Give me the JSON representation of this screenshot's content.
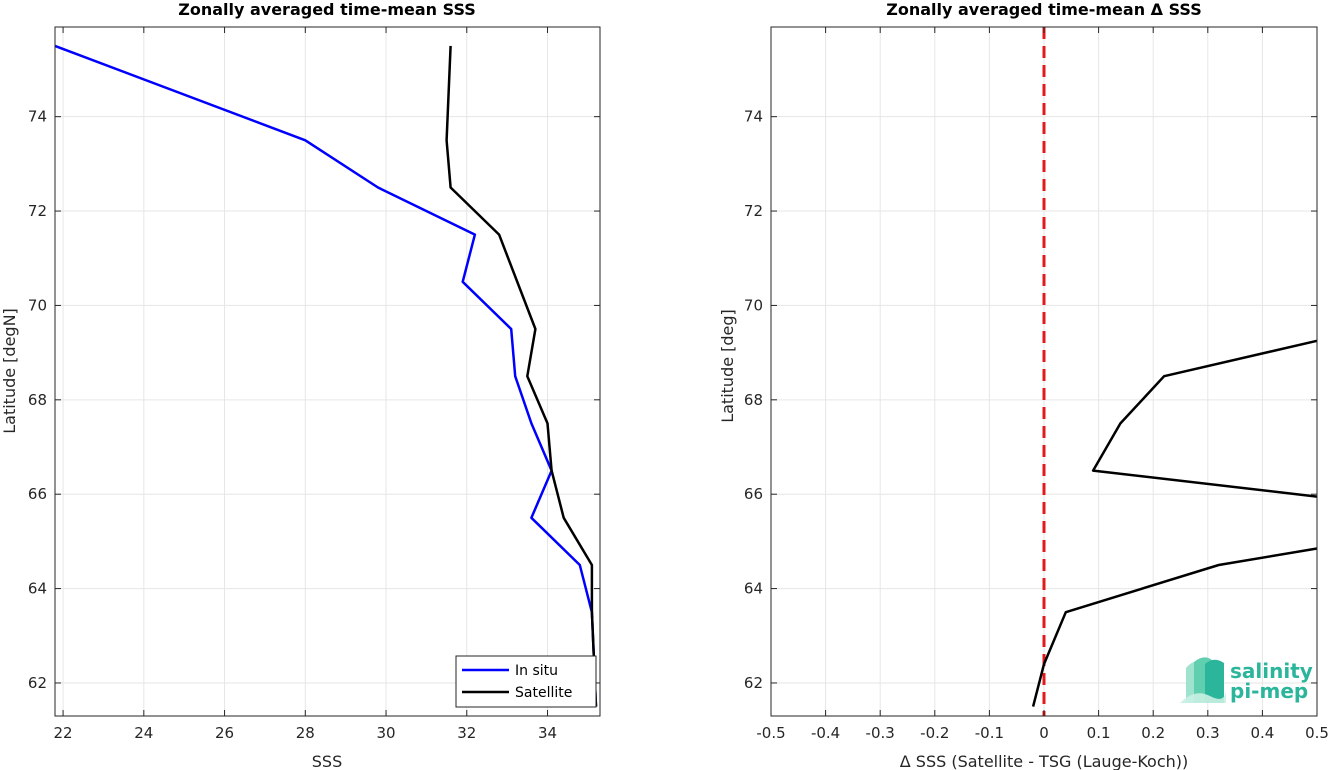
{
  "chart_data": [
    {
      "type": "line",
      "title": "Zonally averaged time-mean SSS",
      "xlabel": "SSS",
      "ylabel": "Latitude [degN]",
      "xlim": [
        21.8,
        35.3
      ],
      "ylim": [
        61.3,
        75.9
      ],
      "xticks": [
        22,
        24,
        26,
        28,
        30,
        32,
        34
      ],
      "yticks": [
        62,
        64,
        66,
        68,
        70,
        72,
        74
      ],
      "grid": true,
      "legend": "bottom-right",
      "series": [
        {
          "name": "In situ",
          "color": "#0000ff",
          "x": [
            21.8,
            28.0,
            29.8,
            32.2,
            31.9,
            33.1,
            33.2,
            33.6,
            34.1,
            33.6,
            34.8,
            35.1,
            35.2
          ],
          "y": [
            75.5,
            73.5,
            72.5,
            71.5,
            70.5,
            69.5,
            68.5,
            67.5,
            66.5,
            65.5,
            64.5,
            63.5,
            61.5
          ]
        },
        {
          "name": "Satellite",
          "color": "#000000",
          "x": [
            31.6,
            31.5,
            31.6,
            32.8,
            33.7,
            33.5,
            34.0,
            34.1,
            34.4,
            35.1,
            35.1,
            35.2
          ],
          "y": [
            75.5,
            73.5,
            72.5,
            71.5,
            69.5,
            68.5,
            67.5,
            66.5,
            65.5,
            64.5,
            63.5,
            61.5
          ]
        }
      ]
    },
    {
      "type": "line",
      "title": "Zonally averaged time-mean Δ SSS",
      "xlabel": "Δ SSS (Satellite - TSG (Lauge-Koch))",
      "ylabel": "Latitude [deg]",
      "xlim": [
        -0.5,
        0.5
      ],
      "ylim": [
        61.3,
        75.9
      ],
      "xticks": [
        -0.5,
        -0.4,
        -0.3,
        -0.2,
        -0.1,
        0,
        0.1,
        0.2,
        0.3,
        0.4,
        0.5
      ],
      "xtick_labels": [
        "-0.5",
        "-0.4",
        "-0.3",
        "-0.2",
        "-0.1",
        "0",
        "0.1",
        "0.2",
        "0.3",
        "0.4",
        "0.5"
      ],
      "yticks": [
        62,
        64,
        66,
        68,
        70,
        72,
        74
      ],
      "grid": true,
      "reference_line": {
        "x": 0,
        "color": "#e31a1c",
        "style": "dashed"
      },
      "series": [
        {
          "color": "#000000",
          "x": [
            0.5,
            0.22,
            0.14,
            0.09,
            0.5
          ],
          "y": [
            69.25,
            68.5,
            67.5,
            66.5,
            65.95
          ]
        },
        {
          "color": "#000000",
          "x": [
            0.5,
            0.32,
            0.04,
            0.0,
            -0.02
          ],
          "y": [
            64.85,
            64.5,
            63.5,
            62.4,
            61.5
          ]
        }
      ]
    }
  ],
  "logo": {
    "line1": "salinity",
    "line2": "pi-mep",
    "color": "#2bb59a"
  }
}
